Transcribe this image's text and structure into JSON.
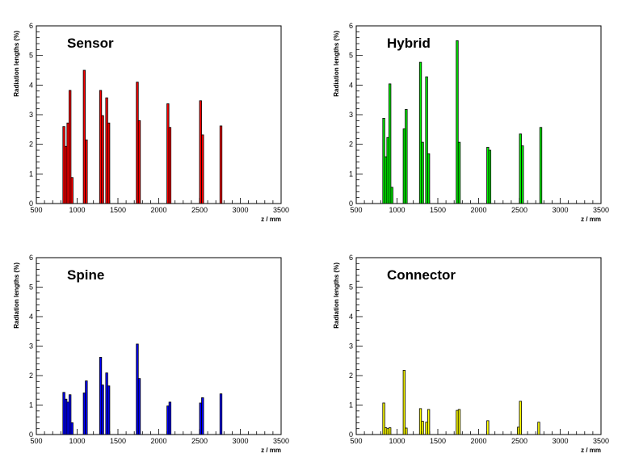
{
  "chart_data": [
    {
      "type": "bar",
      "title": "Sensor",
      "xlabel": "z / mm",
      "ylabel": "Radiation lengths (%)",
      "xlim": [
        500,
        3500
      ],
      "ylim": [
        0,
        6
      ],
      "xticks": [
        500,
        1000,
        1500,
        2000,
        2500,
        3000,
        3500
      ],
      "yticks": [
        0,
        1,
        2,
        3,
        4,
        5,
        6
      ],
      "color": "#ff0000",
      "bin_width": 25,
      "bins": [
        {
          "x": 825,
          "y": 2.6
        },
        {
          "x": 850,
          "y": 1.93
        },
        {
          "x": 875,
          "y": 2.72
        },
        {
          "x": 900,
          "y": 3.82
        },
        {
          "x": 925,
          "y": 0.88
        },
        {
          "x": 1075,
          "y": 4.5
        },
        {
          "x": 1100,
          "y": 2.15
        },
        {
          "x": 1275,
          "y": 3.82
        },
        {
          "x": 1300,
          "y": 2.97
        },
        {
          "x": 1350,
          "y": 3.57
        },
        {
          "x": 1375,
          "y": 2.72
        },
        {
          "x": 1725,
          "y": 4.1
        },
        {
          "x": 1750,
          "y": 2.8
        },
        {
          "x": 2100,
          "y": 3.37
        },
        {
          "x": 2125,
          "y": 2.57
        },
        {
          "x": 2500,
          "y": 3.47
        },
        {
          "x": 2525,
          "y": 2.32
        },
        {
          "x": 2750,
          "y": 2.62
        }
      ]
    },
    {
      "type": "bar",
      "title": "Hybrid",
      "xlabel": "z / mm",
      "ylabel": "Radiation lengths (%)",
      "xlim": [
        500,
        3500
      ],
      "ylim": [
        0,
        6
      ],
      "xticks": [
        500,
        1000,
        1500,
        2000,
        2500,
        3000,
        3500
      ],
      "yticks": [
        0,
        1,
        2,
        3,
        4,
        5,
        6
      ],
      "color": "#00ee00",
      "bin_width": 25,
      "bins": [
        {
          "x": 825,
          "y": 2.88
        },
        {
          "x": 850,
          "y": 1.58
        },
        {
          "x": 875,
          "y": 2.23
        },
        {
          "x": 900,
          "y": 4.04
        },
        {
          "x": 925,
          "y": 0.55
        },
        {
          "x": 1075,
          "y": 2.52
        },
        {
          "x": 1100,
          "y": 3.18
        },
        {
          "x": 1275,
          "y": 4.77
        },
        {
          "x": 1300,
          "y": 2.07
        },
        {
          "x": 1350,
          "y": 4.28
        },
        {
          "x": 1375,
          "y": 1.68
        },
        {
          "x": 1725,
          "y": 5.5
        },
        {
          "x": 1750,
          "y": 2.07
        },
        {
          "x": 2100,
          "y": 1.9
        },
        {
          "x": 2125,
          "y": 1.8
        },
        {
          "x": 2500,
          "y": 2.35
        },
        {
          "x": 2525,
          "y": 1.95
        },
        {
          "x": 2750,
          "y": 2.57
        }
      ]
    },
    {
      "type": "bar",
      "title": "Spine",
      "xlabel": "z / mm",
      "ylabel": "Radiation lengths (%)",
      "xlim": [
        500,
        3500
      ],
      "ylim": [
        0,
        6
      ],
      "xticks": [
        500,
        1000,
        1500,
        2000,
        2500,
        3000,
        3500
      ],
      "yticks": [
        0,
        1,
        2,
        3,
        4,
        5,
        6
      ],
      "color": "#0000ff",
      "bin_width": 25,
      "bins": [
        {
          "x": 825,
          "y": 1.43
        },
        {
          "x": 850,
          "y": 1.2
        },
        {
          "x": 875,
          "y": 1.1
        },
        {
          "x": 900,
          "y": 1.35
        },
        {
          "x": 925,
          "y": 0.4
        },
        {
          "x": 1075,
          "y": 1.41
        },
        {
          "x": 1100,
          "y": 1.82
        },
        {
          "x": 1275,
          "y": 2.62
        },
        {
          "x": 1300,
          "y": 1.68
        },
        {
          "x": 1350,
          "y": 2.09
        },
        {
          "x": 1375,
          "y": 1.65
        },
        {
          "x": 1725,
          "y": 3.07
        },
        {
          "x": 1750,
          "y": 1.9
        },
        {
          "x": 2100,
          "y": 0.97
        },
        {
          "x": 2125,
          "y": 1.1
        },
        {
          "x": 2500,
          "y": 1.07
        },
        {
          "x": 2525,
          "y": 1.25
        },
        {
          "x": 2750,
          "y": 1.38
        }
      ]
    },
    {
      "type": "bar",
      "title": "Connector",
      "xlabel": "z / mm",
      "ylabel": "Radiation lengths (%)",
      "xlim": [
        500,
        3500
      ],
      "ylim": [
        0,
        6
      ],
      "xticks": [
        500,
        1000,
        1500,
        2000,
        2500,
        3000,
        3500
      ],
      "yticks": [
        0,
        1,
        2,
        3,
        4,
        5,
        6
      ],
      "color": "#ffff00",
      "bin_width": 25,
      "bins": [
        {
          "x": 825,
          "y": 1.07
        },
        {
          "x": 850,
          "y": 0.23
        },
        {
          "x": 875,
          "y": 0.2
        },
        {
          "x": 900,
          "y": 0.23
        },
        {
          "x": 1075,
          "y": 2.18
        },
        {
          "x": 1100,
          "y": 0.22
        },
        {
          "x": 1275,
          "y": 0.88
        },
        {
          "x": 1300,
          "y": 0.45
        },
        {
          "x": 1350,
          "y": 0.42
        },
        {
          "x": 1375,
          "y": 0.85
        },
        {
          "x": 1725,
          "y": 0.82
        },
        {
          "x": 1750,
          "y": 0.85
        },
        {
          "x": 2100,
          "y": 0.47
        },
        {
          "x": 2475,
          "y": 0.25
        },
        {
          "x": 2500,
          "y": 1.13
        },
        {
          "x": 2725,
          "y": 0.42
        }
      ]
    }
  ]
}
